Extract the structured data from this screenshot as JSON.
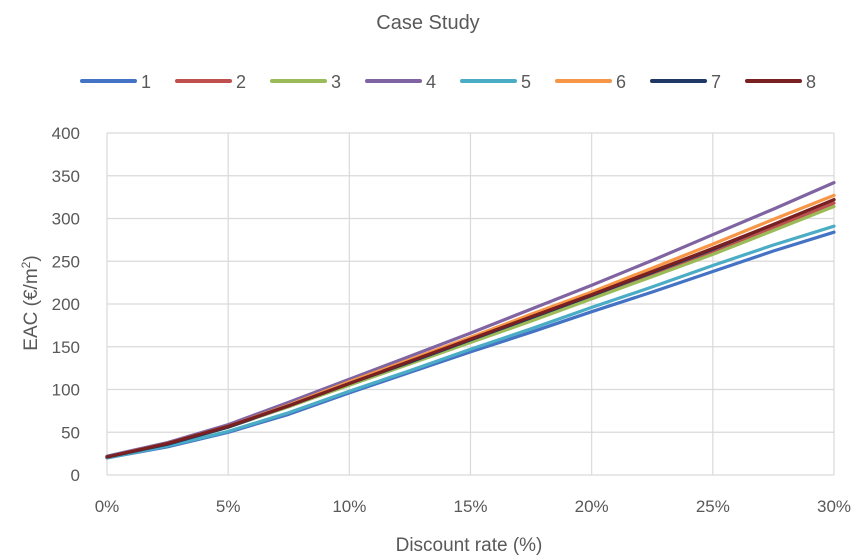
{
  "chart_data": {
    "type": "line",
    "title": "Case Study",
    "xlabel": "Discount rate (%)",
    "ylabel_main": "EAC (€/m",
    "ylabel_sup": "2",
    "ylabel_end": ")",
    "xlim": [
      0,
      30
    ],
    "ylim": [
      0,
      400
    ],
    "x_ticks": [
      0,
      5,
      10,
      15,
      20,
      25,
      30
    ],
    "x_tick_labels": [
      "0%",
      "5%",
      "10%",
      "15%",
      "20%",
      "25%",
      "30%"
    ],
    "y_ticks": [
      0,
      50,
      100,
      150,
      200,
      250,
      300,
      350,
      400
    ],
    "y_tick_labels": [
      "0",
      "50",
      "100",
      "150",
      "200",
      "250",
      "300",
      "350",
      "400"
    ],
    "grid": true,
    "legend_position": "top",
    "x": [
      0,
      2.5,
      5,
      7.5,
      10,
      12.5,
      15,
      17.5,
      20,
      22.5,
      25,
      27.5,
      30
    ],
    "series": [
      {
        "name": "1",
        "color": "#4472C4",
        "values": [
          20,
          33,
          50,
          71,
          96,
          120,
          144,
          167,
          191,
          214,
          238,
          262,
          284
        ]
      },
      {
        "name": "2",
        "color": "#C0504D",
        "values": [
          21,
          36,
          56,
          80,
          106,
          131,
          156,
          182,
          208,
          234,
          261,
          289,
          318
        ]
      },
      {
        "name": "3",
        "color": "#9BBB59",
        "values": [
          21,
          36,
          56,
          80,
          105,
          130,
          155,
          180,
          206,
          232,
          258,
          286,
          314
        ]
      },
      {
        "name": "4",
        "color": "#8064A2",
        "values": [
          22,
          38,
          59,
          85,
          112,
          139,
          166,
          194,
          222,
          251,
          281,
          311,
          342
        ]
      },
      {
        "name": "5",
        "color": "#4BACC6",
        "values": [
          20,
          34,
          51,
          73,
          98,
          122,
          147,
          171,
          196,
          220,
          245,
          269,
          291
        ]
      },
      {
        "name": "6",
        "color": "#F79646",
        "values": [
          21,
          37,
          57,
          82,
          109,
          135,
          161,
          188,
          214,
          242,
          270,
          299,
          327
        ]
      },
      {
        "name": "7",
        "color": "#1F3864",
        "values": [
          21,
          36,
          56,
          81,
          107,
          132,
          158,
          184,
          210,
          237,
          264,
          293,
          322
        ]
      },
      {
        "name": "8",
        "color": "#7B2020",
        "values": [
          21,
          37,
          57,
          81,
          107,
          133,
          159,
          185,
          211,
          238,
          265,
          293,
          322
        ]
      }
    ]
  }
}
